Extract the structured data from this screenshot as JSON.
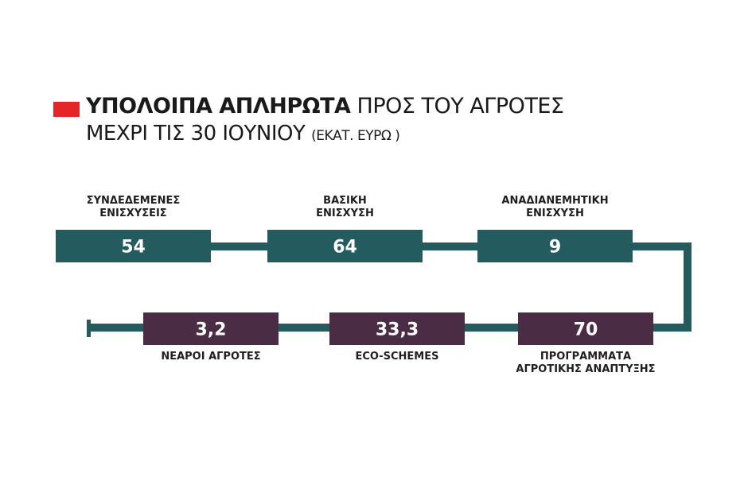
{
  "title": {
    "bold": "ΥΠΟΛΟΙΠΑ ΑΠΛΗΡΩΤΑ",
    "rest": "ΠΡΟΣ ΤΟΥ ΑΓΡΟΤΕΣ",
    "line2": "ΜΕΧΡΙ ΤΙΣ 30 ΙΟΥΝΙΟΥ",
    "unit": "(ΕΚΑΤ. ΕΥΡΩ )"
  },
  "colors": {
    "marker": "#e52629",
    "row1": "#245b5f",
    "row2": "#4a2c45",
    "connector": "#245b5f",
    "value_text": "#ffffff"
  },
  "chart_data": {
    "type": "table",
    "title": "ΥΠΟΛΟΙΠΑ ΑΠΛΗΡΩΤΑ ΠΡΟΣ ΤΟΥ ΑΓΡΟΤΕΣ ΜΕΧΡΙ ΤΙΣ 30 ΙΟΥΝΙΟΥ (ΕΚΑΤ. ΕΥΡΩ )",
    "items": [
      {
        "label": [
          "ΣΥΝΔΕΔΕΜΕΝΕΣ",
          "ΕΝΙΣΧΥΣΕΙΣ"
        ],
        "value": "54",
        "row": 1
      },
      {
        "label": [
          "ΒΑΣΙΚΗ",
          "ΕΝΙΣΧΥΣΗ"
        ],
        "value": "64",
        "row": 1
      },
      {
        "label": [
          "ΑΝΑΔΙΑΝΕΜΗΤΙΚΗ",
          "ΕΝΙΣΧΥΣΗ"
        ],
        "value": "9",
        "row": 1
      },
      {
        "label": [
          "ΠΡΟΓΡΑΜΜΑΤΑ",
          "ΑΓΡΟΤΙΚΗΣ ΑΝΑΠΤΥΞΗΣ"
        ],
        "value": "70",
        "row": 2
      },
      {
        "label": [
          "ECO-SCHEMES"
        ],
        "value": "33,3",
        "row": 2
      },
      {
        "label": [
          "ΝΕΑΡΟΙ ΑΓΡΟΤΕΣ"
        ],
        "value": "3,2",
        "row": 2
      }
    ]
  }
}
